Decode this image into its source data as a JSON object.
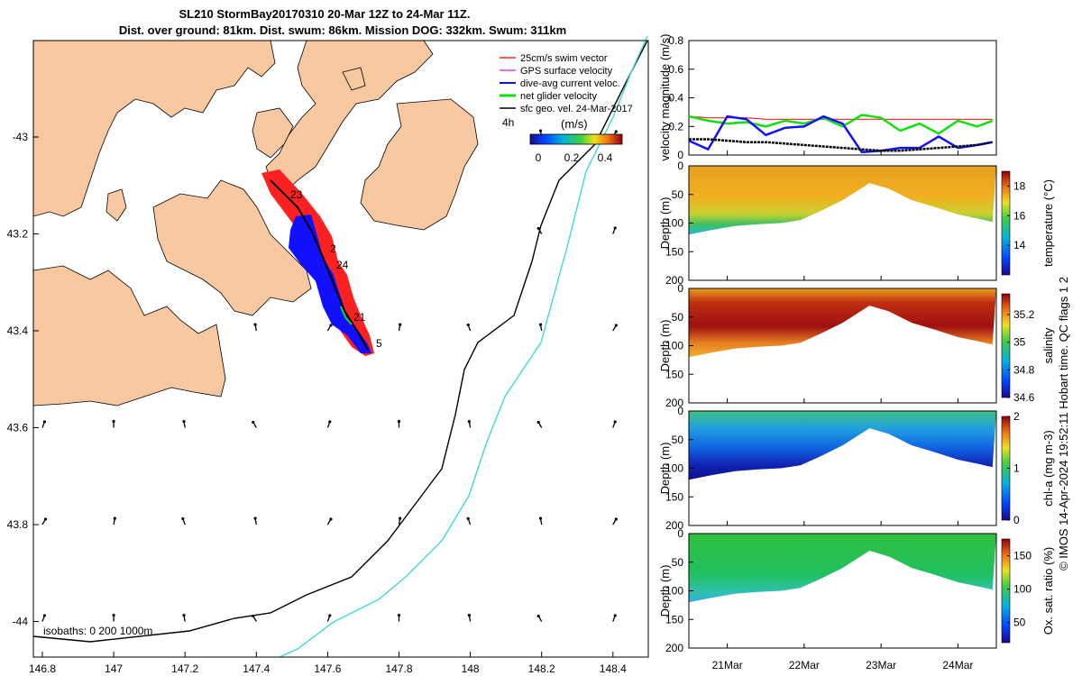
{
  "figure": {
    "title_line1": "SL210 StormBay20170310 20-Mar 12Z to 24-Mar 11Z.",
    "title_line2": "Dist. over ground: 81km. Dist. swum: 86km. Mission DOG: 332km. Swum: 311km",
    "credit": "© IMOS 14-Apr-2024 19:52:11 Hobart time. QC flags 1  2",
    "colors": {
      "land": "#f8c8a0",
      "sea": "#ffffff",
      "isobath_200": "#000000",
      "isobath_1000": "#40d8d8"
    }
  },
  "map": {
    "x_ticks": [
      "146.8",
      "147",
      "147.2",
      "147.4",
      "147.6",
      "147.8",
      "148",
      "148.2",
      "148.4"
    ],
    "y_ticks": [
      "-43",
      "43.2",
      "43.4",
      "43.6",
      "43.8",
      "-44"
    ],
    "isobath_label": "isobaths: 0   200  1000m",
    "legend": [
      {
        "label": "25cm/s swim vector",
        "color": "#ff2020"
      },
      {
        "label": "GPS surface velocity",
        "color": "#e040e0"
      },
      {
        "label": "dive-avg current veloc.",
        "color": "#1010ff"
      },
      {
        "label": "net glider velocity",
        "color": "#10e010"
      },
      {
        "label": "sfc geo. vel. 24-Mar-2017",
        "color": "#000000"
      }
    ],
    "colorbar": {
      "label": "(m/s)",
      "prefix": "4h",
      "ticks": [
        "0",
        "0.2",
        "0.4"
      ]
    },
    "day_labels": [
      "23",
      "2",
      "24",
      "21",
      "5"
    ]
  },
  "chart_data": [
    {
      "type": "line",
      "ylabel": "velocity magnitude (m/s)",
      "ylim": [
        0,
        0.8
      ],
      "y_ticks": [
        "0",
        "0.2",
        "0.4",
        "0.6",
        "0.8"
      ],
      "x_ticks": [
        "21Mar",
        "22Mar",
        "23Mar",
        "24Mar"
      ],
      "x": [
        20.5,
        20.75,
        21.0,
        21.25,
        21.5,
        21.75,
        22.0,
        22.25,
        22.5,
        22.75,
        23.0,
        23.25,
        23.5,
        23.75,
        24.0,
        24.25,
        24.45
      ],
      "series": [
        {
          "color": "#ff2020",
          "values": [
            0.27,
            0.26,
            0.26,
            0.26,
            0.25,
            0.25,
            0.25,
            0.25,
            0.25,
            0.25,
            0.25,
            0.25,
            0.25,
            0.25,
            0.25,
            0.25,
            0.25
          ]
        },
        {
          "color": "#10e010",
          "values": [
            0.27,
            0.24,
            0.22,
            0.23,
            0.2,
            0.24,
            0.22,
            0.26,
            0.2,
            0.28,
            0.26,
            0.17,
            0.22,
            0.15,
            0.24,
            0.2,
            0.24
          ]
        },
        {
          "color": "#1010ff",
          "values": [
            0.1,
            0.04,
            0.27,
            0.25,
            0.14,
            0.19,
            0.2,
            0.27,
            0.22,
            0.02,
            0.03,
            0.05,
            0.05,
            0.13,
            0.05,
            0.07,
            0.09
          ]
        },
        {
          "color": "#000000",
          "values": [
            0.11,
            0.11,
            0.1,
            0.09,
            0.09,
            0.08,
            0.07,
            0.06,
            0.05,
            0.04,
            0.03,
            0.03,
            0.04,
            0.05,
            0.06,
            0.07,
            0.09
          ]
        }
      ]
    },
    {
      "type": "heatmap",
      "variable": "temperature",
      "ylabel": "Depth (m)",
      "y_ticks": [
        "0",
        "50",
        "100",
        "150",
        "200"
      ],
      "colorbar_label": "temperature (°C)",
      "colorbar_ticks": [
        "14",
        "16",
        "18"
      ],
      "clim": [
        12,
        19
      ]
    },
    {
      "type": "heatmap",
      "variable": "salinity",
      "ylabel": "Depth (m)",
      "y_ticks": [
        "0",
        "50",
        "100",
        "150",
        "200"
      ],
      "colorbar_label": "salinity",
      "colorbar_ticks": [
        "34.6",
        "34.8",
        "35",
        "35.2"
      ],
      "clim": [
        34.6,
        35.35
      ]
    },
    {
      "type": "heatmap",
      "variable": "chl-a",
      "ylabel": "Depth (m)",
      "y_ticks": [
        "0",
        "50",
        "100",
        "150",
        "200"
      ],
      "colorbar_label": "chl-a (mg m-3)",
      "colorbar_ticks": [
        "0",
        "1",
        "2"
      ],
      "clim": [
        0,
        2
      ]
    },
    {
      "type": "heatmap",
      "variable": "oxygen",
      "ylabel": "Depth (m)",
      "y_ticks": [
        "0",
        "50",
        "100",
        "150",
        "200"
      ],
      "colorbar_label": "Ox. sat. ratio (%)",
      "colorbar_ticks": [
        "50",
        "100",
        "150"
      ],
      "clim": [
        20,
        175
      ],
      "x_ticks": [
        "21Mar",
        "22Mar",
        "23Mar",
        "24Mar"
      ]
    }
  ],
  "section": {
    "bottom_depth_x": [
      20.5,
      20.8,
      21.1,
      21.4,
      21.7,
      21.95,
      22.2,
      22.5,
      22.85,
      23.1,
      23.4,
      23.7,
      24.0,
      24.25,
      24.45
    ],
    "bottom_depth_m": [
      120,
      112,
      105,
      102,
      100,
      95,
      80,
      60,
      30,
      40,
      60,
      72,
      85,
      92,
      98
    ]
  }
}
